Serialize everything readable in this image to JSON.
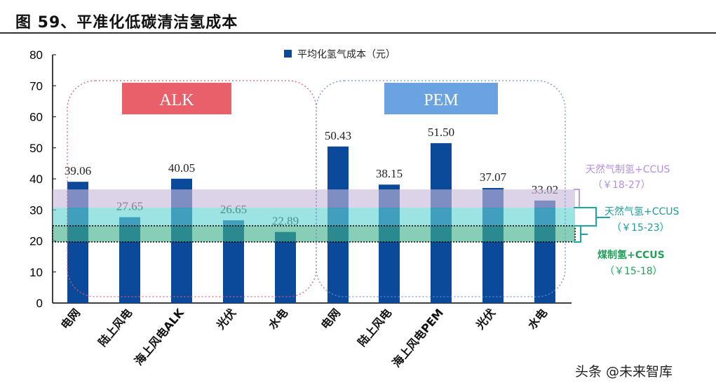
{
  "title": "图 59、平准化低碳清洁氢成本",
  "watermark": "头条 @未来智库",
  "chart_data": {
    "type": "bar",
    "title": "",
    "legend": {
      "label": "平均化氢气成本（元）",
      "placement": "top-center"
    },
    "categories": [
      "电网",
      "陆上风电",
      "海上风电ALK",
      "光伏",
      "水电",
      "电网",
      "陆上风电",
      "海上风电PEM",
      "光伏",
      "水电"
    ],
    "values": [
      39.06,
      27.65,
      40.05,
      26.65,
      22.89,
      50.43,
      38.15,
      51.5,
      37.07,
      33.02
    ],
    "value_labels": [
      "39.06",
      "27.65",
      "40.05",
      "26.65",
      "22.89",
      "50.43",
      "38.15",
      "51.50",
      "37.07",
      "33.02"
    ],
    "ylim": [
      0,
      80
    ],
    "yticks": [
      "0",
      "10",
      "20",
      "30",
      "40",
      "50",
      "60",
      "70",
      "80"
    ],
    "groups": [
      {
        "label": "ALK",
        "color": "#e8606a"
      },
      {
        "label": "PEM",
        "color": "#6aa3e0"
      }
    ],
    "bands": [
      {
        "name": "天然气制氢+CCUS",
        "range": "（￥18-27）",
        "from": 30.7,
        "to": 36.6,
        "color": "#c7b8dc",
        "text_color": "#b58fe0"
      },
      {
        "name": "天然气氢+CCUS",
        "range": "（￥15-23）",
        "from": 24.9,
        "to": 30.7,
        "color": "#5fd3d3",
        "text_color": "#1a9e9a"
      },
      {
        "name": "煤制氢+CCUS",
        "range": "（￥15-18）",
        "from": 19.7,
        "to": 24.9,
        "color": "#3fb08a",
        "text_color": "#22a05a"
      }
    ],
    "bar_color": "#0b4a9a"
  }
}
